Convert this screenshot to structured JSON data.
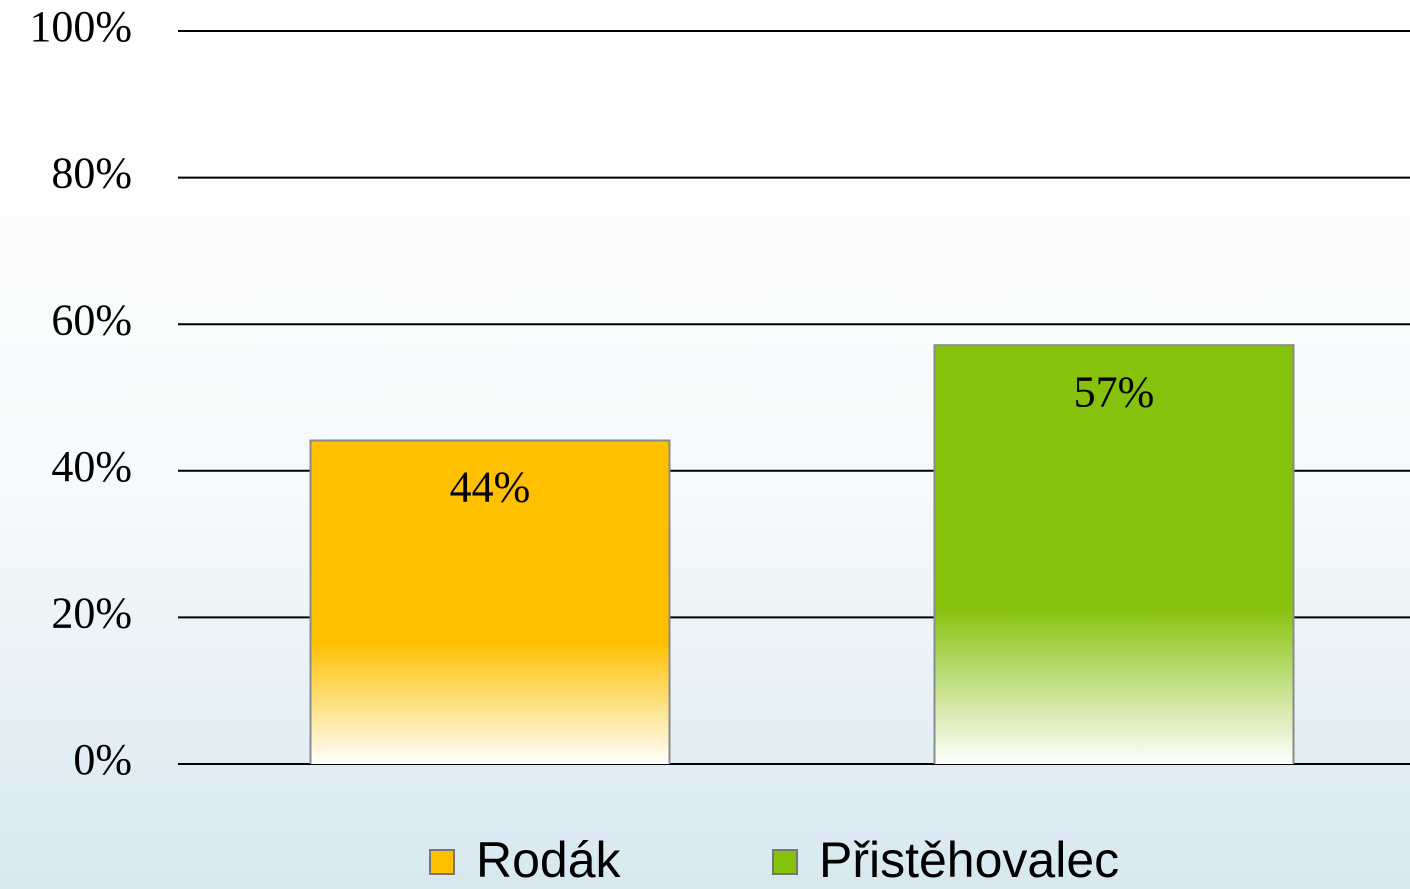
{
  "chart_data": {
    "type": "bar",
    "categories": [
      null
    ],
    "series": [
      {
        "name": "Rodák",
        "color": "#ffc000",
        "values": [
          44
        ],
        "value_labels": [
          "44%"
        ]
      },
      {
        "name": "Přistěhovalec",
        "color": "#86c10b",
        "values": [
          57
        ],
        "value_labels": [
          "57%"
        ]
      }
    ],
    "ylim": [
      0,
      100
    ],
    "yticks": [
      {
        "value": 0,
        "label": "0%"
      },
      {
        "value": 20,
        "label": "20%"
      },
      {
        "value": 40,
        "label": "40%"
      },
      {
        "value": 60,
        "label": "60%"
      },
      {
        "value": 80,
        "label": "80%"
      },
      {
        "value": 100,
        "label": "100%"
      }
    ],
    "grid": true,
    "legend": "bottom"
  }
}
